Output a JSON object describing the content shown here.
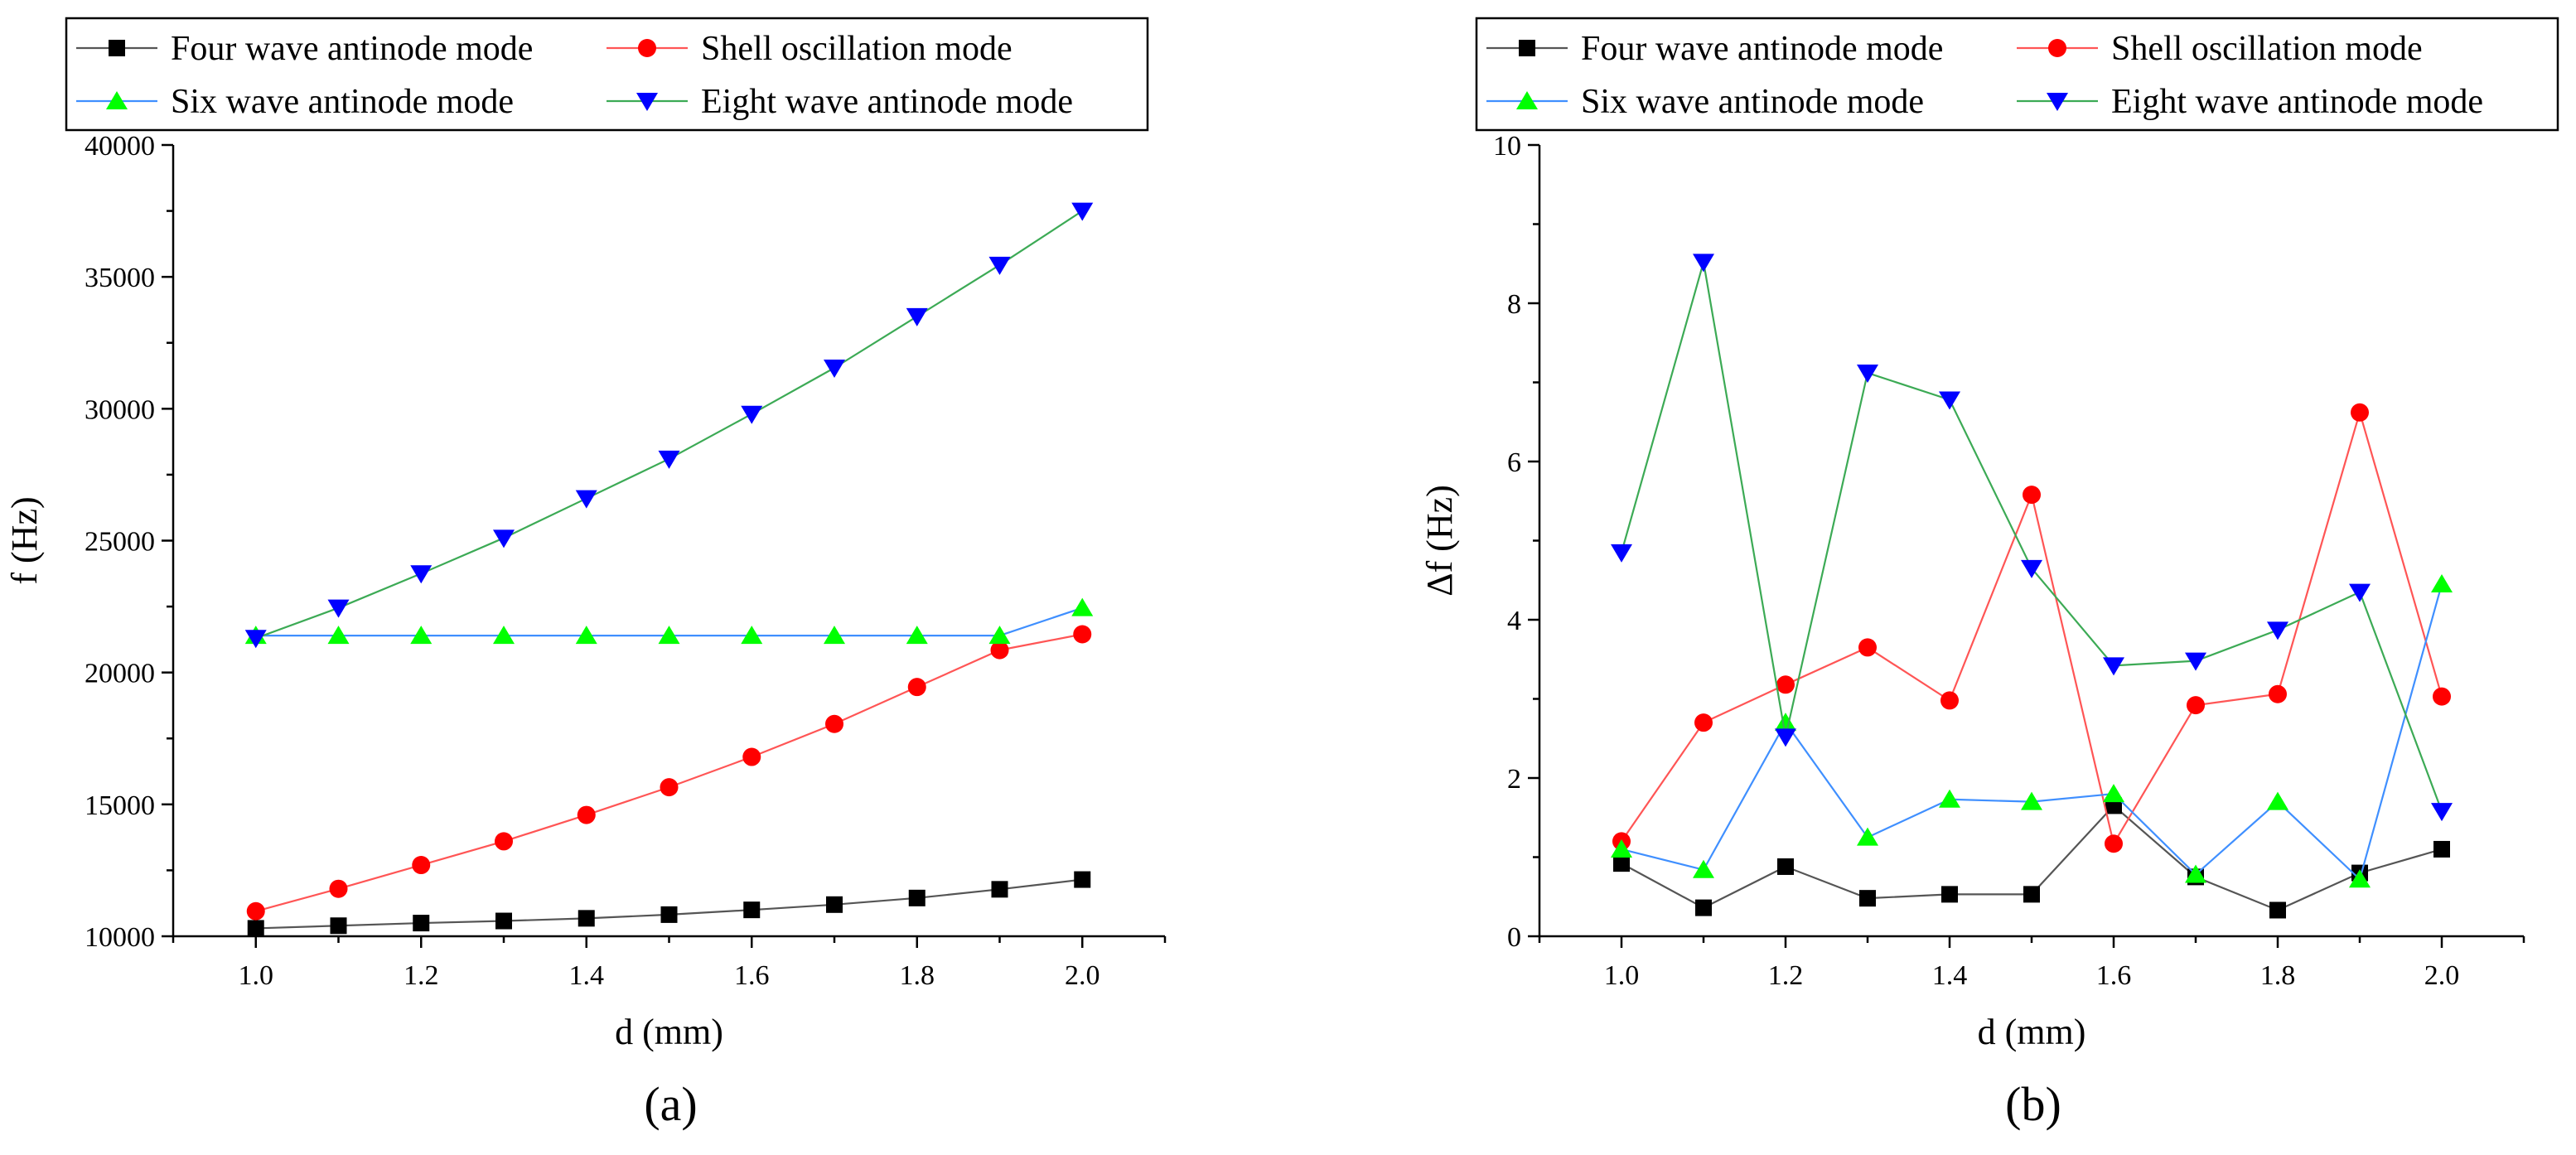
{
  "colors": {
    "four": "#000000",
    "shell": "#ff0000",
    "six": "#00ff00",
    "eight": "#0000ff",
    "line_four": "#555555",
    "line_shell": "#ff5555",
    "line_six": "#3f8fff",
    "line_eight": "#3caa55"
  },
  "chart_data": [
    {
      "type": "line",
      "caption": "(a)",
      "xlabel": "d (mm)",
      "ylabel": "f (Hz)",
      "xlim": [
        0.9,
        2.1
      ],
      "ylim": [
        10000,
        40000
      ],
      "xticks": [
        1.0,
        1.2,
        1.4,
        1.6,
        1.8,
        2.0
      ],
      "xtick_labels": [
        "1.0",
        "1.2",
        "1.4",
        "1.6",
        "1.8",
        "2.0"
      ],
      "yticks": [
        10000,
        15000,
        20000,
        25000,
        30000,
        35000,
        40000
      ],
      "ytick_labels": [
        "10000",
        "15000",
        "20000",
        "25000",
        "30000",
        "35000",
        "40000"
      ],
      "legend_position": "top",
      "x": [
        1.0,
        1.1,
        1.2,
        1.3,
        1.4,
        1.5,
        1.6,
        1.7,
        1.8,
        1.9,
        2.0
      ],
      "series": [
        {
          "key": "four",
          "name": "Four wave antinode mode",
          "marker": "square",
          "values": [
            10300,
            10400,
            10500,
            10580,
            10680,
            10820,
            11000,
            11200,
            11450,
            11780,
            12150
          ]
        },
        {
          "key": "shell",
          "name": "Shell oscillation mode",
          "marker": "circle",
          "values": [
            10950,
            11800,
            12700,
            13600,
            14600,
            15650,
            16800,
            18050,
            19450,
            20850,
            21450
          ]
        },
        {
          "key": "six",
          "name": "Six wave antinode mode",
          "marker": "triangle-up",
          "values": [
            21400,
            21400,
            21400,
            21400,
            21400,
            21400,
            21400,
            21400,
            21400,
            21400,
            22450
          ]
        },
        {
          "key": "eight",
          "name": "Eight wave antinode mode",
          "marker": "triangle-down",
          "values": [
            21300,
            22450,
            23750,
            25100,
            26600,
            28100,
            29800,
            31550,
            33500,
            35450,
            37500
          ]
        }
      ]
    },
    {
      "type": "line",
      "caption": "(b)",
      "xlabel": "d (mm)",
      "ylabel": "Δf (Hz)",
      "xlim": [
        0.9,
        2.1
      ],
      "ylim": [
        0,
        10
      ],
      "xticks": [
        1.0,
        1.2,
        1.4,
        1.6,
        1.8,
        2.0
      ],
      "xtick_labels": [
        "1.0",
        "1.2",
        "1.4",
        "1.6",
        "1.8",
        "2.0"
      ],
      "yticks": [
        0,
        2,
        4,
        6,
        8,
        10
      ],
      "ytick_labels": [
        "0",
        "2",
        "4",
        "6",
        "8",
        "10"
      ],
      "legend_position": "top",
      "x": [
        1.0,
        1.1,
        1.2,
        1.3,
        1.4,
        1.5,
        1.6,
        1.7,
        1.8,
        1.9,
        2.0
      ],
      "series": [
        {
          "key": "four",
          "name": "Four wave antinode mode",
          "marker": "square",
          "values": [
            0.92,
            0.36,
            0.88,
            0.48,
            0.53,
            0.53,
            1.65,
            0.75,
            0.33,
            0.8,
            1.1
          ]
        },
        {
          "key": "shell",
          "name": "Shell oscillation mode",
          "marker": "circle",
          "values": [
            1.2,
            2.7,
            3.18,
            3.65,
            2.98,
            5.58,
            1.17,
            2.92,
            3.06,
            6.62,
            3.03
          ]
        },
        {
          "key": "six",
          "name": "Six wave antinode mode",
          "marker": "triangle-up",
          "values": [
            1.1,
            0.84,
            2.7,
            1.25,
            1.73,
            1.7,
            1.8,
            0.78,
            1.7,
            0.72,
            4.45
          ]
        },
        {
          "key": "eight",
          "name": "Eight wave antinode mode",
          "marker": "triangle-down",
          "values": [
            4.85,
            8.52,
            2.52,
            7.12,
            6.78,
            4.65,
            3.42,
            3.48,
            3.87,
            4.35,
            1.58
          ]
        }
      ]
    }
  ]
}
